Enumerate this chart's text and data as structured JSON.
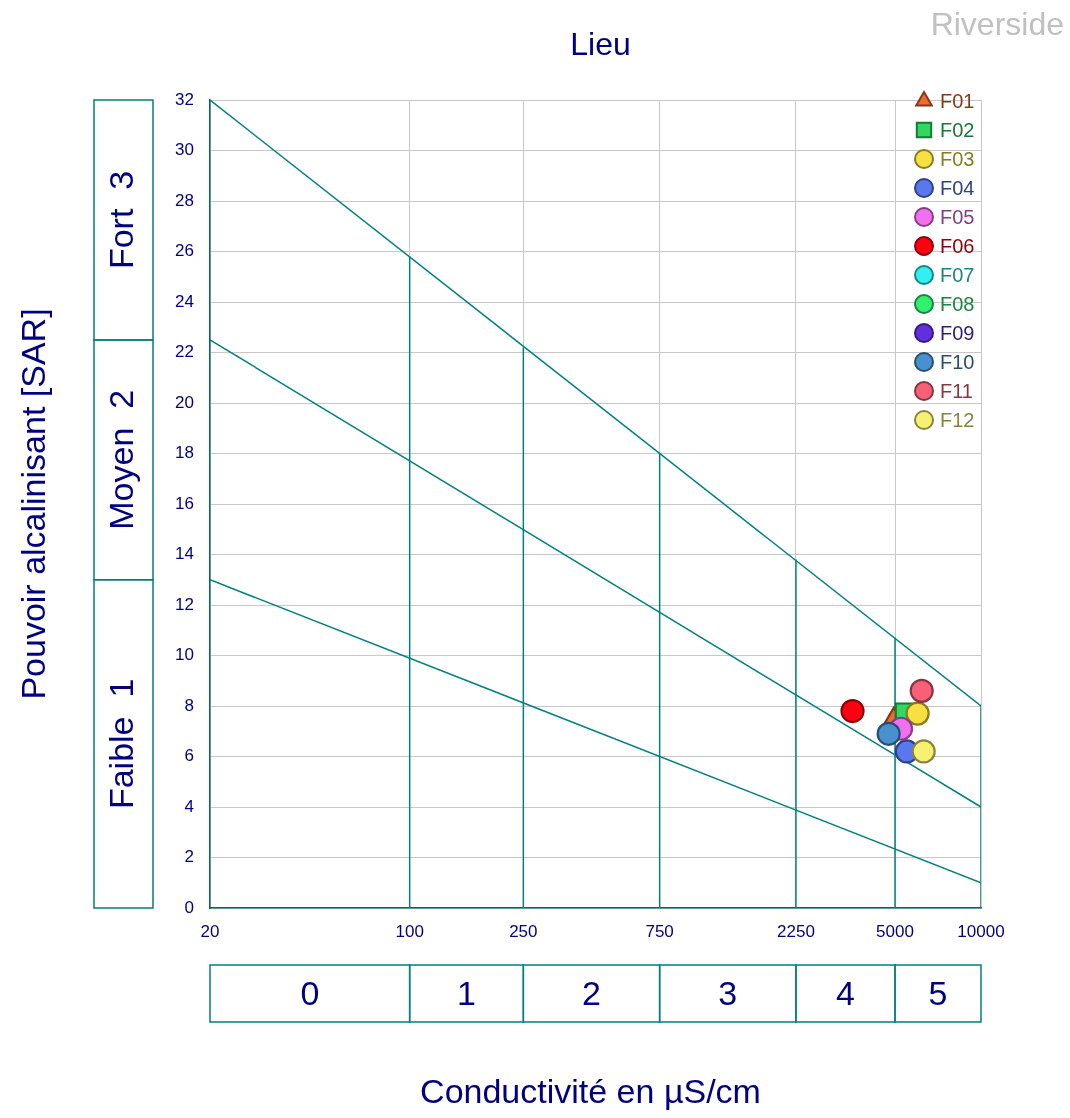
{
  "chart_data": {
    "type": "scatter",
    "title": "Lieu",
    "xlabel": "Conductivité en µS/cm",
    "ylabel": "Pouvoir alcalinisant [SAR]",
    "annotations": [
      "Riverside",
      "Faible  1",
      "Moyen  2",
      "Fort  3",
      "0",
      "1",
      "2",
      "3",
      "4",
      "5"
    ],
    "log": "x",
    "xlim": [
      20,
      10000
    ],
    "xticks": [
      20,
      100,
      250,
      750,
      2250,
      5000,
      10000
    ],
    "ylim": [
      0,
      32
    ],
    "yticks": [
      0,
      2,
      4,
      6,
      8,
      10,
      12,
      14,
      16,
      18,
      20,
      22,
      24,
      26,
      28,
      30,
      32
    ],
    "grid": true,
    "legend": "top right",
    "series": [
      {
        "type": "line",
        "color": "#008080",
        "x": [
          20,
          10000
        ],
        "values": [
          32,
          8
        ]
      },
      {
        "type": "line",
        "color": "#008080",
        "x": [
          20,
          10000
        ],
        "values": [
          22.5,
          4
        ]
      },
      {
        "type": "line",
        "color": "#008080",
        "x": [
          20,
          10000
        ],
        "values": [
          13,
          1
        ]
      },
      {
        "type": "line",
        "color": "#008080",
        "x": [
          100,
          100
        ],
        "values": [
          0,
          25.8
        ]
      },
      {
        "type": "line",
        "color": "#008080",
        "x": [
          250,
          250
        ],
        "values": [
          0,
          22.2
        ]
      },
      {
        "type": "line",
        "color": "#008080",
        "x": [
          750,
          750
        ],
        "values": [
          0,
          18
        ]
      },
      {
        "type": "line",
        "color": "#008080",
        "x": [
          2250,
          2250
        ],
        "values": [
          0,
          13.8
        ]
      },
      {
        "type": "line",
        "color": "#008080",
        "x": [
          5000,
          5000
        ],
        "values": [
          0,
          10.7
        ]
      },
      {
        "type": "line",
        "color": "#008080",
        "x": [
          10000,
          10000
        ],
        "values": [
          0,
          8
        ]
      },
      {
        "name": "F01",
        "marker": "triangle",
        "color": "#f06a30",
        "x": [
          4950
        ],
        "values": [
          7.5
        ]
      },
      {
        "name": "F02",
        "marker": "square",
        "color": "#30d860",
        "x": [
          5400
        ],
        "values": [
          7.75
        ]
      },
      {
        "name": "F03",
        "color": "#f8e040",
        "x": [
          6000
        ],
        "values": [
          7.7
        ]
      },
      {
        "name": "F04",
        "color": "#5878f0",
        "x": [
          5500
        ],
        "values": [
          6.2
        ]
      },
      {
        "name": "F05",
        "color": "#f070f0",
        "x": [
          5250
        ],
        "values": [
          7.1
        ]
      },
      {
        "name": "F06",
        "color": "#ff0010",
        "x": [
          3550
        ],
        "values": [
          7.8
        ]
      },
      {
        "name": "F07",
        "marker": "circle",
        "color": "#30f0f0",
        "x": [
          null
        ],
        "values": [
          null
        ]
      },
      {
        "name": "F08",
        "marker": "circle",
        "color": "#30f070",
        "x": [
          null
        ],
        "values": [
          null
        ]
      },
      {
        "name": "F09",
        "marker": "circle",
        "color": "#6030e0",
        "x": [
          null
        ],
        "values": [
          null
        ]
      },
      {
        "name": "F10",
        "marker": "circle",
        "color": "#4890d0",
        "x": [
          4750
        ],
        "values": [
          6.9
        ]
      },
      {
        "name": "F11",
        "marker": "circle",
        "color": "#f86078",
        "x": [
          6200
        ],
        "values": [
          8.6
        ]
      },
      {
        "name": "F12",
        "marker": "circle",
        "color": "#f8f070",
        "x": [
          6300
        ],
        "values": [
          6.2
        ]
      }
    ]
  }
}
